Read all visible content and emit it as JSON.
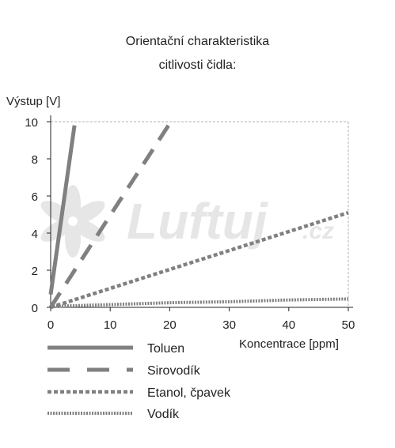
{
  "title_line1": "Orientační charakteristika",
  "title_line2": "citlivosti čidla:",
  "watermark": {
    "brand": "Luftuj",
    "tld": ".cz"
  },
  "colors": {
    "series": "#808080",
    "frame": "#b3b3b3",
    "axis": "#222222",
    "watermark": "#e6e6e6"
  },
  "chart_data": {
    "type": "line",
    "ylabel": "Výstup [V]",
    "xlabel": "Koncentrace [ppm]",
    "xlim": [
      0,
      50
    ],
    "ylim": [
      0,
      10
    ],
    "xticks": [
      0,
      10,
      20,
      30,
      40,
      50
    ],
    "yticks": [
      0,
      2,
      4,
      6,
      8,
      10
    ],
    "grid": false,
    "legend_position": "bottom",
    "series": [
      {
        "name": "Toluen",
        "style": "solid",
        "x": [
          0,
          4
        ],
        "y": [
          0.7,
          9.8
        ]
      },
      {
        "name": "Sirovodík",
        "style": "dashed",
        "x": [
          0,
          20
        ],
        "y": [
          0,
          9.9
        ]
      },
      {
        "name": "Etanol, čpavek",
        "style": "dotted",
        "x": [
          0,
          50
        ],
        "y": [
          0,
          5.1
        ]
      },
      {
        "name": "Vodík",
        "style": "fine-dotted",
        "x": [
          0,
          10,
          20,
          30,
          40,
          50
        ],
        "y": [
          0.05,
          0.15,
          0.25,
          0.3,
          0.4,
          0.45
        ]
      }
    ]
  }
}
